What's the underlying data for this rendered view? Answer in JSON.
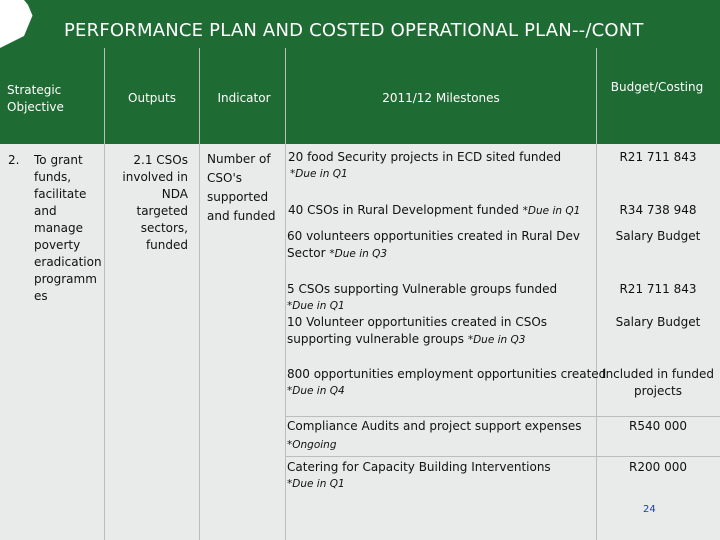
{
  "title": "PERFORMANCE PLAN AND COSTED OPERATIONAL PLAN--/CONT",
  "headers": {
    "strategic_objective": "Strategic Objective",
    "outputs": "Outputs",
    "indicator": "Indicator",
    "milestones": "2011/12 Milestones",
    "budget": "Budget/Costing"
  },
  "objective": {
    "number": "2.",
    "text": "To grant funds, facilitate and manage poverty eradication programm es"
  },
  "output": "2.1 CSOs involved in NDA targeted sectors, funded",
  "indicator": "Number of CSO's supported and funded",
  "rows": [
    {
      "milestone": "20 food Security projects in ECD sited funded",
      "due": "*Due in Q1",
      "budget": "R21 711 843"
    },
    {
      "milestone": "40 CSOs in Rural Development funded",
      "due": "*Due in Q1",
      "budget": "R34 738 948"
    },
    {
      "milestone": "60 volunteers opportunities created in Rural Dev Sector",
      "due": "*Due in Q3",
      "budget": "Salary  Budget"
    },
    {
      "milestone": "5 CSOs supporting Vulnerable groups funded",
      "due": "*Due in Q1",
      "budget": "R21 711 843"
    },
    {
      "milestone": "10 Volunteer opportunities created in CSOs supporting vulnerable groups",
      "due": "*Due in Q3",
      "budget": "Salary Budget"
    },
    {
      "milestone": "800 opportunities employment opportunities created",
      "due": "*Due in Q4",
      "budget": "Included in funded projects"
    },
    {
      "milestone": "Compliance Audits and  project support expenses",
      "due": "*Ongoing",
      "budget": "R540 000"
    },
    {
      "milestone": "Catering for Capacity Building Interventions",
      "due": "*Due in Q1",
      "budget": "R200 000"
    }
  ],
  "page_number": "24",
  "colors": {
    "banner": "#1e6c33",
    "grid": "#e9eaea",
    "page_number": "#1a3fb0"
  }
}
